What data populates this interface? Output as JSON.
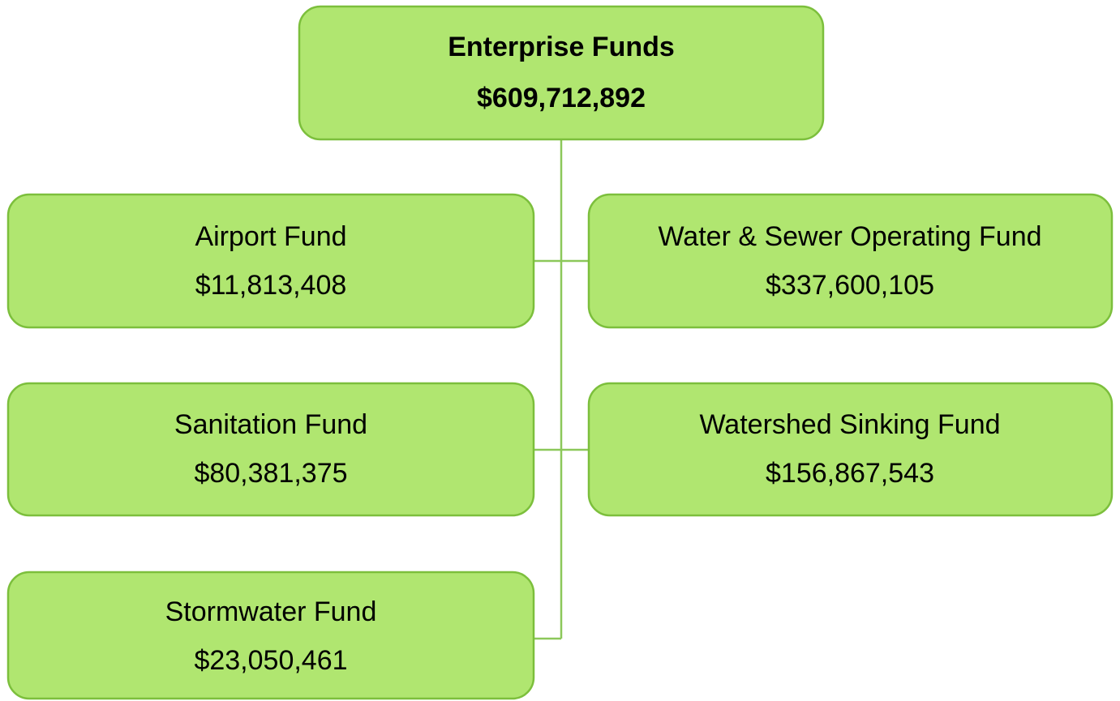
{
  "root": {
    "title": "Enterprise Funds",
    "amount": "$609,712,892"
  },
  "children": [
    {
      "label": "Airport Fund",
      "amount": "$11,813,408"
    },
    {
      "label": "Water & Sewer Operating Fund",
      "amount": "$337,600,105"
    },
    {
      "label": "Sanitation Fund",
      "amount": "$80,381,375"
    },
    {
      "label": "Watershed Sinking Fund",
      "amount": "$156,867,543"
    },
    {
      "label": "Stormwater Fund",
      "amount": "$23,050,461"
    }
  ]
}
